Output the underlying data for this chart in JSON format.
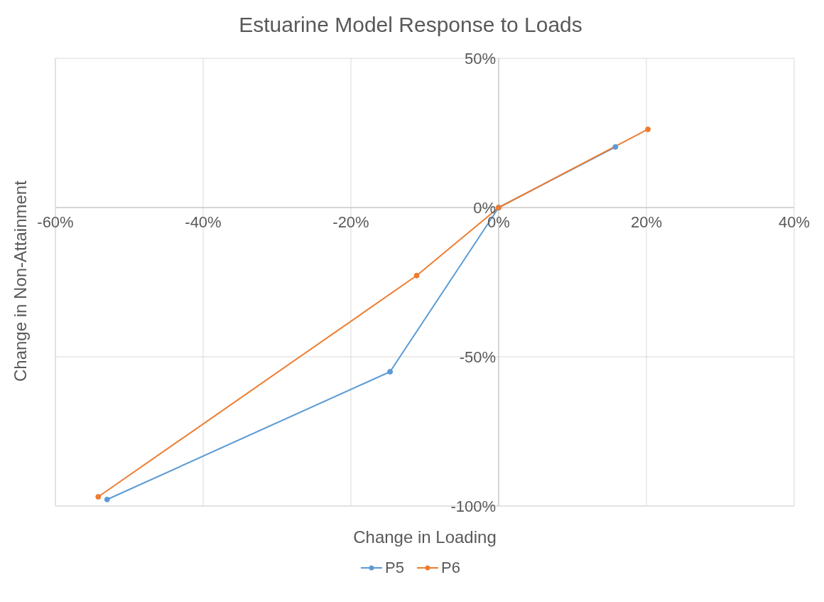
{
  "chart_data": {
    "type": "line",
    "title": "Estuarine Model Response to Loads",
    "xlabel": "Change in Loading",
    "ylabel": "Change in Non-Attainment",
    "series": [
      {
        "name": "P5",
        "color": "#5b9bd5",
        "x": [
          -53,
          -14.7,
          0,
          15.8
        ],
        "values": [
          -97.8,
          -55,
          0,
          20.3
        ]
      },
      {
        "name": "P6",
        "color": "#ed7d31",
        "x": [
          -54.2,
          -11.1,
          0,
          20.2
        ],
        "values": [
          -96.9,
          -22.8,
          0,
          26.2
        ]
      }
    ],
    "xlim": [
      -60,
      40
    ],
    "xticks": [
      {
        "value": -60,
        "label": "-60%"
      },
      {
        "value": -40,
        "label": "-40%"
      },
      {
        "value": -20,
        "label": "-20%"
      },
      {
        "value": 0,
        "label": "0%"
      },
      {
        "value": 20,
        "label": "20%"
      },
      {
        "value": 40,
        "label": "40%"
      }
    ],
    "ylim": [
      -100,
      50
    ],
    "yticks": [
      {
        "value": -100,
        "label": "-100%"
      },
      {
        "value": -50,
        "label": "-50%"
      },
      {
        "value": 0,
        "label": "0%"
      },
      {
        "value": 50,
        "label": "50%"
      }
    ],
    "grid": true,
    "legend": "bottom",
    "marker": "circle",
    "line_style": "solid"
  }
}
